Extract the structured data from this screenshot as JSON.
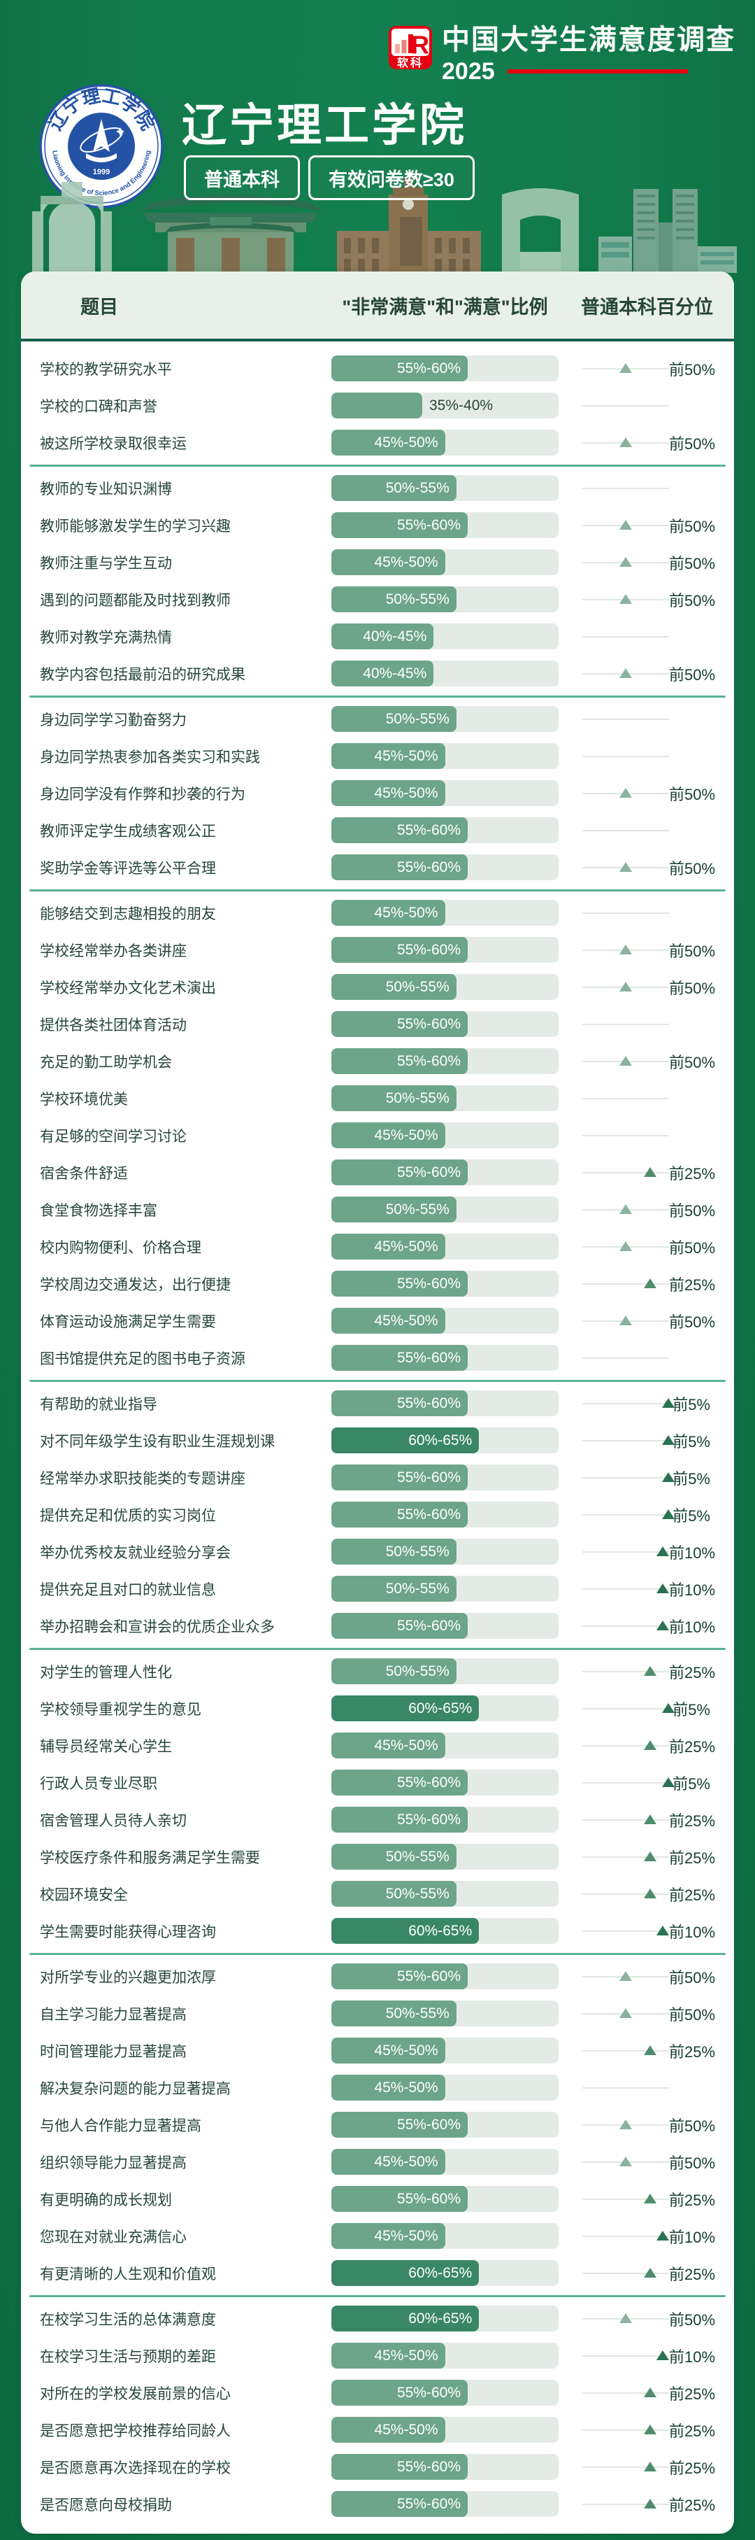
{
  "brand": {
    "logo_cn": "软科",
    "survey_title": "中国大学生满意度调查",
    "year": "2025"
  },
  "university": {
    "name": "辽宁理工学院",
    "badge_type": "普通本科",
    "badge_sample": "有效问卷数≥30",
    "seal_cn": "辽宁理工学院",
    "seal_en": "Liaoning Institute of Science and Engineering",
    "seal_year": "1999"
  },
  "table": {
    "col_question": "题目",
    "col_ratio": "\"非常满意\"和\"满意\"比例",
    "col_percentile": "普通本科百分位"
  },
  "colors": {
    "bg": "#11794A",
    "red": "#E60012",
    "head_bg": "#E9F0EA",
    "head_line": "#16604C",
    "question": "#26463A",
    "bar_track": "#E4EBE6",
    "bar_fill": "#6DA58A",
    "bar_fill_dark": "#3A8767",
    "separator": "#57B394",
    "ptrack": "#DFE7E1",
    "ptext": "#16402F",
    "tier_colors": {
      "50": "#8CB29E",
      "25": "#4F8C6D",
      "10": "#2B7254",
      "5": "#2B7254"
    },
    "tier_pos": {
      "50": 50,
      "25": 78,
      "10": 93,
      "5": 99
    }
  },
  "chart_data": {
    "type": "bar",
    "title": "辽宁理工学院 中国大学生满意度调查 2025",
    "xlabel": "\"非常满意\"和\"满意\"比例",
    "ylabel": "普通本科百分位",
    "xlim": [
      0,
      100
    ],
    "groups": [
      {
        "rows": [
          {
            "question": "学校的教学研究水平",
            "range": "55%-60%",
            "pct": 60,
            "tone": "normal",
            "percentile": {
              "label": "前50%",
              "tier": "50"
            }
          },
          {
            "question": "学校的口碑和声誉",
            "range": "35%-40%",
            "pct": 40,
            "tone": "normal",
            "percentile": null
          },
          {
            "question": "被这所学校录取很幸运",
            "range": "45%-50%",
            "pct": 50,
            "tone": "normal",
            "percentile": {
              "label": "前50%",
              "tier": "50"
            }
          }
        ]
      },
      {
        "rows": [
          {
            "question": "教师的专业知识渊博",
            "range": "50%-55%",
            "pct": 55,
            "tone": "normal",
            "percentile": null
          },
          {
            "question": "教师能够激发学生的学习兴趣",
            "range": "55%-60%",
            "pct": 60,
            "tone": "normal",
            "percentile": {
              "label": "前50%",
              "tier": "50"
            }
          },
          {
            "question": "教师注重与学生互动",
            "range": "45%-50%",
            "pct": 50,
            "tone": "normal",
            "percentile": {
              "label": "前50%",
              "tier": "50"
            }
          },
          {
            "question": "遇到的问题都能及时找到教师",
            "range": "50%-55%",
            "pct": 55,
            "tone": "normal",
            "percentile": {
              "label": "前50%",
              "tier": "50"
            }
          },
          {
            "question": "教师对教学充满热情",
            "range": "40%-45%",
            "pct": 45,
            "tone": "normal",
            "percentile": null
          },
          {
            "question": "教学内容包括最前沿的研究成果",
            "range": "40%-45%",
            "pct": 45,
            "tone": "normal",
            "percentile": {
              "label": "前50%",
              "tier": "50"
            }
          }
        ]
      },
      {
        "rows": [
          {
            "question": "身边同学学习勤奋努力",
            "range": "50%-55%",
            "pct": 55,
            "tone": "normal",
            "percentile": null
          },
          {
            "question": "身边同学热衷参加各类实习和实践",
            "range": "45%-50%",
            "pct": 50,
            "tone": "normal",
            "percentile": null
          },
          {
            "question": "身边同学没有作弊和抄袭的行为",
            "range": "45%-50%",
            "pct": 50,
            "tone": "normal",
            "percentile": {
              "label": "前50%",
              "tier": "50"
            }
          },
          {
            "question": "教师评定学生成绩客观公正",
            "range": "55%-60%",
            "pct": 60,
            "tone": "normal",
            "percentile": null
          },
          {
            "question": "奖助学金等评选等公平合理",
            "range": "55%-60%",
            "pct": 60,
            "tone": "normal",
            "percentile": {
              "label": "前50%",
              "tier": "50"
            }
          }
        ]
      },
      {
        "rows": [
          {
            "question": "能够结交到志趣相投的朋友",
            "range": "45%-50%",
            "pct": 50,
            "tone": "normal",
            "percentile": null
          },
          {
            "question": "学校经常举办各类讲座",
            "range": "55%-60%",
            "pct": 60,
            "tone": "normal",
            "percentile": {
              "label": "前50%",
              "tier": "50"
            }
          },
          {
            "question": "学校经常举办文化艺术演出",
            "range": "50%-55%",
            "pct": 55,
            "tone": "normal",
            "percentile": {
              "label": "前50%",
              "tier": "50"
            }
          },
          {
            "question": "提供各类社团体育活动",
            "range": "55%-60%",
            "pct": 60,
            "tone": "normal",
            "percentile": null
          },
          {
            "question": "充足的勤工助学机会",
            "range": "55%-60%",
            "pct": 60,
            "tone": "normal",
            "percentile": {
              "label": "前50%",
              "tier": "50"
            }
          },
          {
            "question": "学校环境优美",
            "range": "50%-55%",
            "pct": 55,
            "tone": "normal",
            "percentile": null
          },
          {
            "question": "有足够的空间学习讨论",
            "range": "45%-50%",
            "pct": 50,
            "tone": "normal",
            "percentile": null
          },
          {
            "question": "宿舍条件舒适",
            "range": "55%-60%",
            "pct": 60,
            "tone": "normal",
            "percentile": {
              "label": "前25%",
              "tier": "25"
            }
          },
          {
            "question": "食堂食物选择丰富",
            "range": "50%-55%",
            "pct": 55,
            "tone": "normal",
            "percentile": {
              "label": "前50%",
              "tier": "50"
            }
          },
          {
            "question": "校内购物便利、价格合理",
            "range": "45%-50%",
            "pct": 50,
            "tone": "normal",
            "percentile": {
              "label": "前50%",
              "tier": "50"
            }
          },
          {
            "question": "学校周边交通发达，出行便捷",
            "range": "55%-60%",
            "pct": 60,
            "tone": "normal",
            "percentile": {
              "label": "前25%",
              "tier": "25"
            }
          },
          {
            "question": "体育运动设施满足学生需要",
            "range": "45%-50%",
            "pct": 50,
            "tone": "normal",
            "percentile": {
              "label": "前50%",
              "tier": "50"
            }
          },
          {
            "question": "图书馆提供充足的图书电子资源",
            "range": "55%-60%",
            "pct": 60,
            "tone": "normal",
            "percentile": null
          }
        ]
      },
      {
        "rows": [
          {
            "question": "有帮助的就业指导",
            "range": "55%-60%",
            "pct": 60,
            "tone": "normal",
            "percentile": {
              "label": "前5%",
              "tier": "5"
            }
          },
          {
            "question": "对不同年级学生设有职业生涯规划课",
            "range": "60%-65%",
            "pct": 65,
            "tone": "dark",
            "percentile": {
              "label": "前5%",
              "tier": "5"
            }
          },
          {
            "question": "经常举办求职技能类的专题讲座",
            "range": "55%-60%",
            "pct": 60,
            "tone": "normal",
            "percentile": {
              "label": "前5%",
              "tier": "5"
            }
          },
          {
            "question": "提供充足和优质的实习岗位",
            "range": "55%-60%",
            "pct": 60,
            "tone": "normal",
            "percentile": {
              "label": "前5%",
              "tier": "5"
            }
          },
          {
            "question": "举办优秀校友就业经验分享会",
            "range": "50%-55%",
            "pct": 55,
            "tone": "normal",
            "percentile": {
              "label": "前10%",
              "tier": "10"
            }
          },
          {
            "question": "提供充足且对口的就业信息",
            "range": "50%-55%",
            "pct": 55,
            "tone": "normal",
            "percentile": {
              "label": "前10%",
              "tier": "10"
            }
          },
          {
            "question": "举办招聘会和宣讲会的优质企业众多",
            "range": "55%-60%",
            "pct": 60,
            "tone": "normal",
            "percentile": {
              "label": "前10%",
              "tier": "10"
            }
          }
        ]
      },
      {
        "rows": [
          {
            "question": "对学生的管理人性化",
            "range": "50%-55%",
            "pct": 55,
            "tone": "normal",
            "percentile": {
              "label": "前25%",
              "tier": "25"
            }
          },
          {
            "question": "学校领导重视学生的意见",
            "range": "60%-65%",
            "pct": 65,
            "tone": "dark",
            "percentile": {
              "label": "前5%",
              "tier": "5"
            }
          },
          {
            "question": "辅导员经常关心学生",
            "range": "45%-50%",
            "pct": 50,
            "tone": "normal",
            "percentile": {
              "label": "前25%",
              "tier": "25"
            }
          },
          {
            "question": "行政人员专业尽职",
            "range": "55%-60%",
            "pct": 60,
            "tone": "normal",
            "percentile": {
              "label": "前5%",
              "tier": "5"
            }
          },
          {
            "question": "宿舍管理人员待人亲切",
            "range": "55%-60%",
            "pct": 60,
            "tone": "normal",
            "percentile": {
              "label": "前25%",
              "tier": "25"
            }
          },
          {
            "question": "学校医疗条件和服务满足学生需要",
            "range": "50%-55%",
            "pct": 55,
            "tone": "normal",
            "percentile": {
              "label": "前25%",
              "tier": "25"
            }
          },
          {
            "question": "校园环境安全",
            "range": "50%-55%",
            "pct": 55,
            "tone": "normal",
            "percentile": {
              "label": "前25%",
              "tier": "25"
            }
          },
          {
            "question": "学生需要时能获得心理咨询",
            "range": "60%-65%",
            "pct": 65,
            "tone": "dark",
            "percentile": {
              "label": "前10%",
              "tier": "10"
            }
          }
        ]
      },
      {
        "rows": [
          {
            "question": "对所学专业的兴趣更加浓厚",
            "range": "55%-60%",
            "pct": 60,
            "tone": "normal",
            "percentile": {
              "label": "前50%",
              "tier": "50"
            }
          },
          {
            "question": "自主学习能力显著提高",
            "range": "50%-55%",
            "pct": 55,
            "tone": "normal",
            "percentile": {
              "label": "前50%",
              "tier": "50"
            }
          },
          {
            "question": "时间管理能力显著提高",
            "range": "45%-50%",
            "pct": 50,
            "tone": "normal",
            "percentile": {
              "label": "前25%",
              "tier": "25"
            }
          },
          {
            "question": "解决复杂问题的能力显著提高",
            "range": "45%-50%",
            "pct": 50,
            "tone": "normal",
            "percentile": null
          },
          {
            "question": "与他人合作能力显著提高",
            "range": "55%-60%",
            "pct": 60,
            "tone": "normal",
            "percentile": {
              "label": "前50%",
              "tier": "50"
            }
          },
          {
            "question": "组织领导能力显著提高",
            "range": "45%-50%",
            "pct": 50,
            "tone": "normal",
            "percentile": {
              "label": "前50%",
              "tier": "50"
            }
          },
          {
            "question": "有更明确的成长规划",
            "range": "55%-60%",
            "pct": 60,
            "tone": "normal",
            "percentile": {
              "label": "前25%",
              "tier": "25"
            }
          },
          {
            "question": "您现在对就业充满信心",
            "range": "45%-50%",
            "pct": 50,
            "tone": "normal",
            "percentile": {
              "label": "前10%",
              "tier": "10"
            }
          },
          {
            "question": "有更清晰的人生观和价值观",
            "range": "60%-65%",
            "pct": 65,
            "tone": "dark",
            "percentile": {
              "label": "前25%",
              "tier": "25"
            }
          }
        ]
      },
      {
        "rows": [
          {
            "question": "在校学习生活的总体满意度",
            "range": "60%-65%",
            "pct": 65,
            "tone": "dark",
            "percentile": {
              "label": "前50%",
              "tier": "50"
            }
          },
          {
            "question": "在校学习生活与预期的差距",
            "range": "45%-50%",
            "pct": 50,
            "tone": "normal",
            "percentile": {
              "label": "前10%",
              "tier": "10"
            }
          },
          {
            "question": "对所在的学校发展前景的信心",
            "range": "55%-60%",
            "pct": 60,
            "tone": "normal",
            "percentile": {
              "label": "前25%",
              "tier": "25"
            }
          },
          {
            "question": "是否愿意把学校推荐给同龄人",
            "range": "45%-50%",
            "pct": 50,
            "tone": "normal",
            "percentile": {
              "label": "前25%",
              "tier": "25"
            }
          },
          {
            "question": "是否愿意再次选择现在的学校",
            "range": "55%-60%",
            "pct": 60,
            "tone": "normal",
            "percentile": {
              "label": "前25%",
              "tier": "25"
            }
          },
          {
            "question": "是否愿意向母校捐助",
            "range": "55%-60%",
            "pct": 60,
            "tone": "normal",
            "percentile": {
              "label": "前25%",
              "tier": "25"
            }
          }
        ]
      }
    ]
  }
}
